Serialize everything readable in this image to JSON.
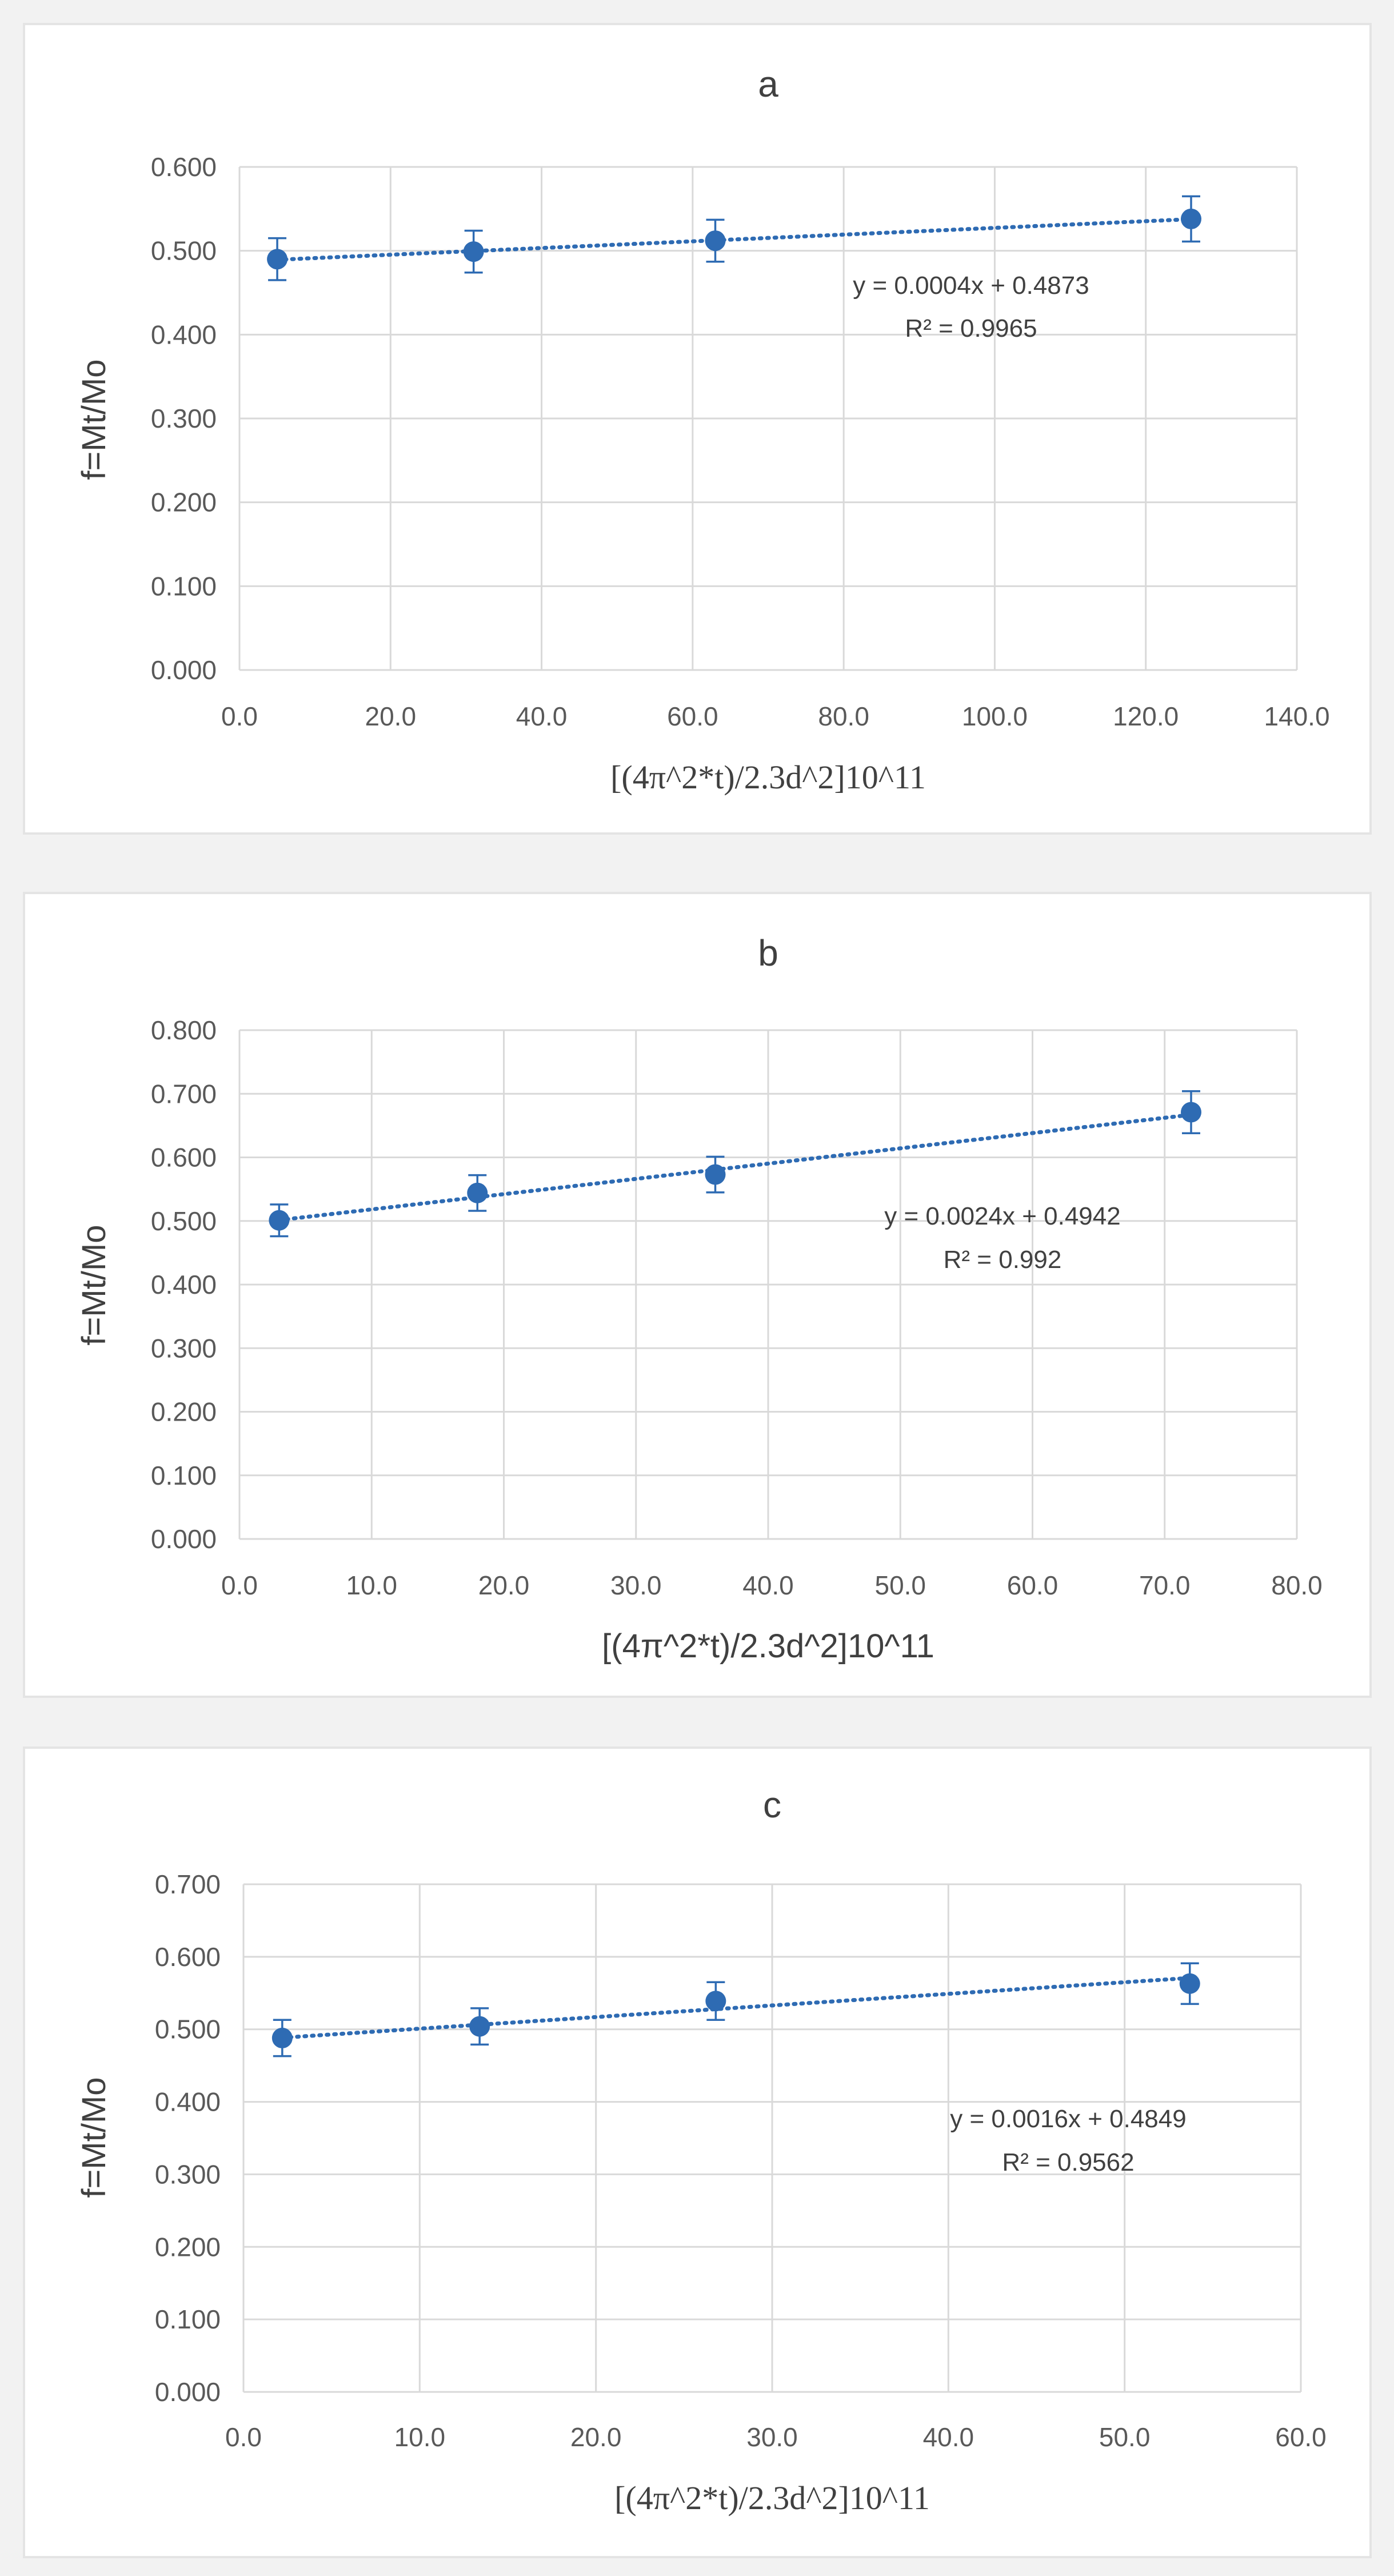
{
  "colors": {
    "series": "#2e6bb3",
    "grid": "#d9d9d9",
    "text": "#595959"
  },
  "chart_data": [
    {
      "type": "scatter",
      "title": "a",
      "xlabel": "[(4π^2*t)/2.3d^2]10^11",
      "ylabel": "f=Mt/Mo",
      "xlim": [
        0,
        140
      ],
      "ylim": [
        0,
        0.6
      ],
      "x_ticks": [
        "0.0",
        "20.0",
        "40.0",
        "60.0",
        "80.0",
        "100.0",
        "120.0",
        "140.0"
      ],
      "y_ticks": [
        "0.000",
        "0.100",
        "0.200",
        "0.300",
        "0.400",
        "0.500",
        "0.600"
      ],
      "grid": true,
      "series": [
        {
          "x": [
            5.0,
            31.0,
            63.0,
            126.0
          ],
          "y": [
            0.49,
            0.499,
            0.512,
            0.538
          ],
          "error": [
            0.025,
            0.025,
            0.025,
            0.027
          ]
        }
      ],
      "trendline": {
        "type": "linear",
        "slope": 0.0004,
        "intercept": 0.4873
      },
      "equation": "y = 0.0004x + 0.4873",
      "r_squared": "R² = 0.9965"
    },
    {
      "type": "scatter",
      "title": "b",
      "xlabel": "[(4π^2*t)/2.3d^2]10^11",
      "ylabel": "f=Mt/Mo",
      "xlim": [
        0,
        80
      ],
      "ylim": [
        0,
        0.8
      ],
      "x_ticks": [
        "0.0",
        "10.0",
        "20.0",
        "30.0",
        "40.0",
        "50.0",
        "60.0",
        "70.0",
        "80.0"
      ],
      "y_ticks": [
        "0.000",
        "0.100",
        "0.200",
        "0.300",
        "0.400",
        "0.500",
        "0.600",
        "0.700",
        "0.800"
      ],
      "grid": true,
      "series": [
        {
          "x": [
            3.0,
            18.0,
            36.0,
            72.0
          ],
          "y": [
            0.501,
            0.544,
            0.573,
            0.671
          ],
          "error": [
            0.025,
            0.028,
            0.028,
            0.033
          ]
        }
      ],
      "trendline": {
        "type": "linear",
        "slope": 0.0024,
        "intercept": 0.4942
      },
      "equation": "y = 0.0024x + 0.4942",
      "r_squared": "R² = 0.992"
    },
    {
      "type": "scatter",
      "title": "c",
      "xlabel": "[(4π^2*t)/2.3d^2]10^11",
      "ylabel": "f=Mt/Mo",
      "xlim": [
        0,
        60
      ],
      "ylim": [
        0,
        0.7
      ],
      "x_ticks": [
        "0.0",
        "10.0",
        "20.0",
        "30.0",
        "40.0",
        "50.0",
        "60.0"
      ],
      "y_ticks": [
        "0.000",
        "0.100",
        "0.200",
        "0.300",
        "0.400",
        "0.500",
        "0.600",
        "0.700"
      ],
      "grid": true,
      "series": [
        {
          "x": [
            2.2,
            13.4,
            26.8,
            53.7
          ],
          "y": [
            0.488,
            0.504,
            0.539,
            0.563
          ],
          "error": [
            0.025,
            0.025,
            0.026,
            0.028
          ]
        }
      ],
      "trendline": {
        "type": "linear",
        "slope": 0.0016,
        "intercept": 0.4849
      },
      "equation": "y = 0.0016x + 0.4849",
      "r_squared": "R² = 0.9562"
    }
  ]
}
